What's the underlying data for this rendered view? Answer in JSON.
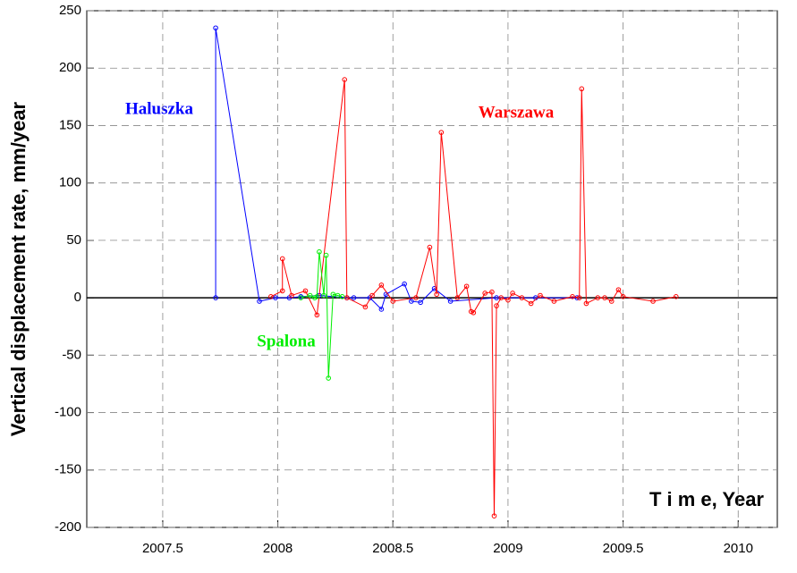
{
  "chart_data": {
    "type": "line",
    "y_label": "Vertical displacement rate, mm/year",
    "x_label": "T i m e, Year",
    "xlim": [
      2007.17,
      2010.17
    ],
    "xticks": [
      2007.5,
      2008,
      2008.5,
      2009,
      2009.5,
      2010
    ],
    "ylim": [
      -200,
      250
    ],
    "yticks": [
      -200,
      -150,
      -100,
      -50,
      0,
      50,
      100,
      150,
      200,
      250
    ],
    "grid": true,
    "series": [
      {
        "name": "Haluszka",
        "color": "#0000ff",
        "x": [
          2007.73,
          2007.73,
          2007.92,
          2007.99,
          2008.05,
          2008.1,
          2008.18,
          2008.3,
          2008.33,
          2008.4,
          2008.45,
          2008.47,
          2008.55,
          2008.58,
          2008.62,
          2008.68,
          2008.75,
          2008.95,
          2009.12,
          2009.3
        ],
        "values": [
          0,
          235,
          -3,
          0,
          0,
          1,
          2,
          0,
          0,
          0,
          -10,
          3,
          12,
          -3,
          -4,
          8,
          -3,
          0,
          0,
          0
        ]
      },
      {
        "name": "Warszawa",
        "color": "#ff0000",
        "x": [
          2007.97,
          2008.02,
          2008.02,
          2008.06,
          2008.12,
          2008.17,
          2008.29,
          2008.3,
          2008.38,
          2008.41,
          2008.45,
          2008.5,
          2008.6,
          2008.66,
          2008.69,
          2008.71,
          2008.78,
          2008.82,
          2008.84,
          2008.85,
          2008.9,
          2008.93,
          2008.94,
          2008.95,
          2008.97,
          2009.0,
          2009.02,
          2009.06,
          2009.1,
          2009.14,
          2009.2,
          2009.28,
          2009.31,
          2009.32,
          2009.34,
          2009.39,
          2009.42,
          2009.45,
          2009.48,
          2009.5,
          2009.63,
          2009.73
        ],
        "values": [
          1,
          6,
          34,
          2,
          6,
          -15,
          190,
          0,
          -8,
          2,
          11,
          -3,
          0,
          44,
          3,
          144,
          0,
          10,
          -12,
          -13,
          4,
          5,
          -190,
          -7,
          0,
          -2,
          4,
          0,
          -5,
          2,
          -3,
          1,
          0,
          182,
          -5,
          0,
          0,
          -3,
          7,
          1,
          -3,
          1
        ]
      },
      {
        "name": "Spalona",
        "color": "#00ee00",
        "x": [
          2008.1,
          2008.14,
          2008.16,
          2008.17,
          2008.18,
          2008.2,
          2008.21,
          2008.22,
          2008.24,
          2008.26,
          2008.28
        ],
        "values": [
          0,
          2,
          0,
          1,
          40,
          2,
          37,
          -70,
          3,
          2,
          1
        ]
      }
    ]
  }
}
